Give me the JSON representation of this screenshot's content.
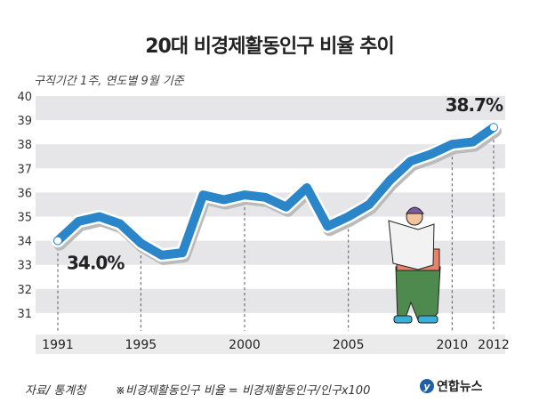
{
  "chart_data": {
    "type": "line",
    "title": "20대 비경제활동인구 비율 추이",
    "subtitle": "구직기간 1주, 연도별 9월 기준",
    "x": [
      1991,
      1992,
      1993,
      1994,
      1995,
      1996,
      1997,
      1998,
      1999,
      2000,
      2001,
      2002,
      2003,
      2004,
      2005,
      2006,
      2007,
      2008,
      2009,
      2010,
      2011,
      2012
    ],
    "series": [
      {
        "name": "20대 비경제활동인구 비율",
        "values": [
          34.0,
          34.8,
          35.0,
          34.7,
          33.9,
          33.4,
          33.5,
          35.9,
          35.7,
          35.9,
          35.8,
          35.4,
          36.2,
          34.6,
          35.0,
          35.5,
          36.5,
          37.3,
          37.6,
          38.0,
          38.1,
          38.7
        ]
      }
    ],
    "ylim": [
      30,
      40
    ],
    "yticks": [
      31,
      32,
      33,
      34,
      35,
      36,
      37,
      38,
      39,
      40
    ],
    "xticks": [
      "1991",
      "1995",
      "2000",
      "2005",
      "2010",
      "2012"
    ],
    "annotations": [
      {
        "year": 1991,
        "label": "34.0%"
      },
      {
        "year": 2012,
        "label": "38.7%"
      }
    ],
    "color": "#2a86c8"
  },
  "footer": {
    "source": "자료/ 통계청",
    "note": "※비경제활동인구 비율 = 비경제활동인구/인구x100",
    "logo": "연합뉴스",
    "logo_mark": "y"
  }
}
